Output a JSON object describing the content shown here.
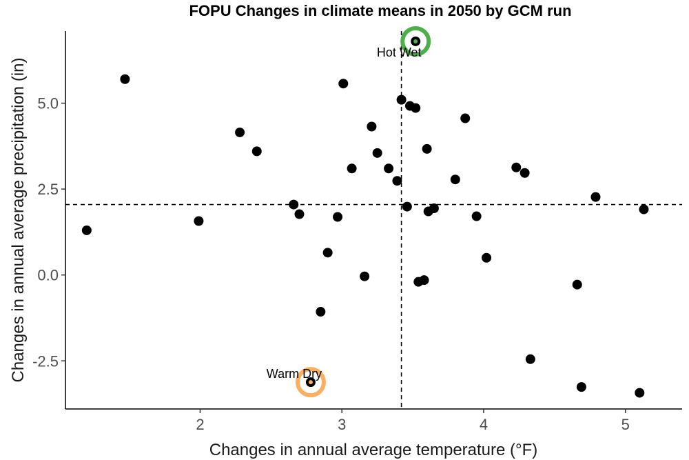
{
  "chart_data": {
    "type": "scatter",
    "title": "FOPU Changes in climate means in 2050 by GCM run",
    "xlabel": "Changes in annual average temperature (°F)",
    "ylabel": "Changes in annual average precipitation (in)",
    "xlim": [
      1.05,
      5.4
    ],
    "ylim": [
      -3.9,
      7.1
    ],
    "xticks": [
      2,
      3,
      4,
      5
    ],
    "yticks": [
      -2.5,
      0.0,
      2.5,
      5.0
    ],
    "xtick_labels": [
      "2",
      "3",
      "4",
      "5"
    ],
    "ytick_labels": [
      "-2.5",
      "0.0",
      "2.5",
      "5.0"
    ],
    "grid": false,
    "reference_lines": {
      "x": 3.42,
      "y": 2.05
    },
    "points": [
      {
        "x": 1.2,
        "y": 1.3
      },
      {
        "x": 1.47,
        "y": 5.7
      },
      {
        "x": 1.99,
        "y": 1.57
      },
      {
        "x": 2.28,
        "y": 4.15
      },
      {
        "x": 2.4,
        "y": 3.6
      },
      {
        "x": 2.66,
        "y": 2.05
      },
      {
        "x": 2.7,
        "y": 1.77
      },
      {
        "x": 2.78,
        "y": -3.12
      },
      {
        "x": 2.85,
        "y": -1.07
      },
      {
        "x": 2.9,
        "y": 0.65
      },
      {
        "x": 2.97,
        "y": 1.69
      },
      {
        "x": 3.01,
        "y": 5.57
      },
      {
        "x": 3.07,
        "y": 3.1
      },
      {
        "x": 3.16,
        "y": -0.04
      },
      {
        "x": 3.21,
        "y": 4.32
      },
      {
        "x": 3.25,
        "y": 3.55
      },
      {
        "x": 3.33,
        "y": 3.1
      },
      {
        "x": 3.39,
        "y": 2.74
      },
      {
        "x": 3.42,
        "y": 5.1
      },
      {
        "x": 3.46,
        "y": 1.99
      },
      {
        "x": 3.48,
        "y": 4.92
      },
      {
        "x": 3.52,
        "y": 4.86
      },
      {
        "x": 3.52,
        "y": 6.8
      },
      {
        "x": 3.54,
        "y": -0.2
      },
      {
        "x": 3.58,
        "y": -0.15
      },
      {
        "x": 3.6,
        "y": 3.67
      },
      {
        "x": 3.61,
        "y": 1.85
      },
      {
        "x": 3.65,
        "y": 1.94
      },
      {
        "x": 3.8,
        "y": 2.78
      },
      {
        "x": 3.87,
        "y": 4.56
      },
      {
        "x": 3.95,
        "y": 1.71
      },
      {
        "x": 4.02,
        "y": 0.5
      },
      {
        "x": 4.23,
        "y": 3.13
      },
      {
        "x": 4.29,
        "y": 2.97
      },
      {
        "x": 4.33,
        "y": -2.45
      },
      {
        "x": 4.66,
        "y": -0.28
      },
      {
        "x": 4.69,
        "y": -3.26
      },
      {
        "x": 4.79,
        "y": 2.27
      },
      {
        "x": 5.1,
        "y": -3.43
      },
      {
        "x": 5.13,
        "y": 1.91
      }
    ],
    "highlights": [
      {
        "x": 3.52,
        "y": 6.8,
        "label": "Hot Wet",
        "color": "#4daf4a"
      },
      {
        "x": 2.78,
        "y": -3.12,
        "label": "Warm Dry",
        "color": "#fdae61"
      }
    ]
  }
}
